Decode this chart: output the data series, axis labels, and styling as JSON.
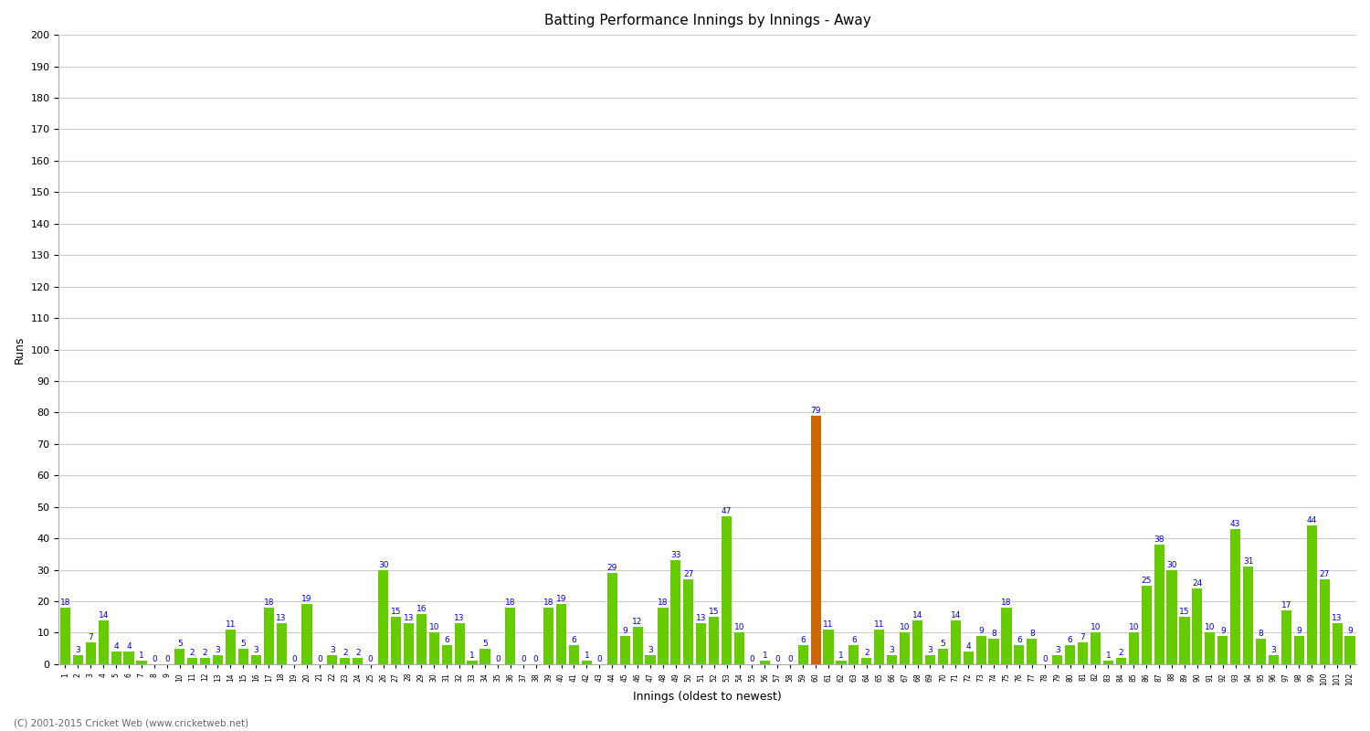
{
  "title": "Batting Performance Innings by Innings - Away",
  "xlabel": "Innings (oldest to newest)",
  "ylabel": "Runs",
  "values": [
    18,
    3,
    7,
    14,
    4,
    4,
    1,
    0,
    0,
    5,
    2,
    2,
    3,
    11,
    5,
    3,
    18,
    13,
    0,
    19,
    0,
    3,
    2,
    2,
    0,
    30,
    15,
    13,
    16,
    10,
    6,
    13,
    1,
    5,
    0,
    18,
    0,
    0,
    18,
    19,
    6,
    1,
    0,
    29,
    9,
    12,
    3,
    18,
    33,
    27,
    13,
    15,
    47,
    10,
    0,
    1,
    0,
    0,
    6,
    79,
    11,
    1,
    6,
    2,
    11,
    3,
    10,
    14,
    3,
    5,
    14,
    4,
    9,
    8,
    18,
    6,
    8,
    0,
    3,
    6,
    7,
    10,
    1,
    2,
    10,
    25,
    38,
    30,
    15,
    24,
    10,
    9,
    43,
    31,
    8,
    3,
    17,
    9,
    44,
    27,
    13,
    9
  ],
  "not_out_indices": [
    59
  ],
  "bar_color": "#66cc00",
  "not_out_color": "#cc6600",
  "ylim": [
    0,
    200
  ],
  "yticks": [
    0,
    10,
    20,
    30,
    40,
    50,
    60,
    70,
    80,
    90,
    100,
    110,
    120,
    130,
    140,
    150,
    160,
    170,
    180,
    190,
    200
  ],
  "title_fontsize": 11,
  "label_fontsize": 9,
  "tick_fontsize": 8,
  "value_fontsize": 6.5,
  "background_color": "#ffffff",
  "grid_color": "#cccccc",
  "copyright": "(C) 2001-2015 Cricket Web (www.cricketweb.net)"
}
